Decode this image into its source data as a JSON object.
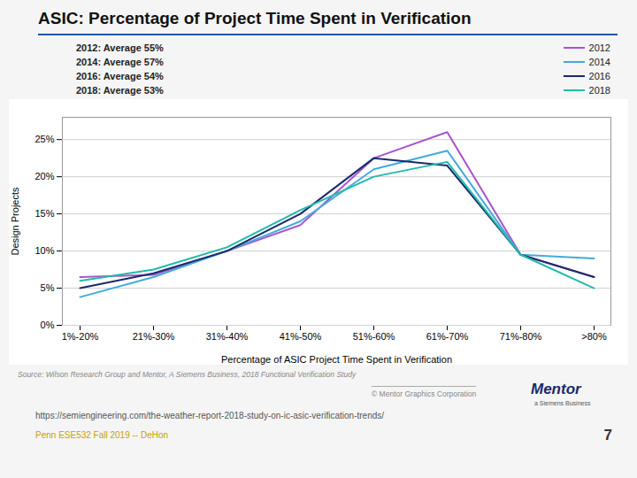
{
  "chart_data": {
    "type": "line",
    "title": "ASIC: Percentage of Project Time Spent in Verification",
    "xlabel": "Percentage of ASIC Project Time Spent in Verification",
    "ylabel": "Design Projects",
    "categories": [
      "1%-20%",
      "21%-30%",
      "31%-40%",
      "41%-50%",
      "51%-60%",
      "61%-70%",
      "71%-80%",
      ">80%"
    ],
    "series": [
      {
        "name": "2012",
        "color": "#AA55CC",
        "values": [
          6.5,
          6.8,
          10.0,
          13.5,
          22.5,
          26.0,
          9.5,
          6.5
        ]
      },
      {
        "name": "2014",
        "color": "#44AADD",
        "values": [
          3.8,
          6.5,
          10.0,
          14.0,
          21.0,
          23.5,
          9.5,
          9.0
        ]
      },
      {
        "name": "2016",
        "color": "#1B2A6B",
        "values": [
          5.0,
          7.0,
          10.0,
          15.0,
          22.5,
          21.5,
          9.5,
          6.5
        ]
      },
      {
        "name": "2018",
        "color": "#22BBAA",
        "values": [
          6.0,
          7.5,
          10.5,
          15.5,
          20.0,
          22.0,
          9.5,
          5.0
        ]
      }
    ],
    "annotations": [
      "2012: Average 55%",
      "2014: Average 57%",
      "2016: Average 54%",
      "2018: Average 53%"
    ],
    "footer": [
      "Source:  Wilson Research Group and Mentor, A Siemens Business, 2018 Functional Verification Study",
      "© Mentor Graphics Corporation",
      "Mentor",
      "a Siemens Business",
      "https://semiengineering.com/the-weather-report-2018-study-on-ic-asic-verification-trends/",
      "Penn ESE532 Fall 2019 -- DeHon",
      "7"
    ],
    "ylim": [
      0,
      28
    ],
    "yticks": [
      {
        "value": 0,
        "label": "0%"
      },
      {
        "value": 5,
        "label": "5%"
      },
      {
        "value": 10,
        "label": "10%"
      },
      {
        "value": 15,
        "label": "15%"
      },
      {
        "value": 20,
        "label": "20%"
      },
      {
        "value": 25,
        "label": "25%"
      }
    ],
    "grid": true,
    "legend": "upper right"
  }
}
